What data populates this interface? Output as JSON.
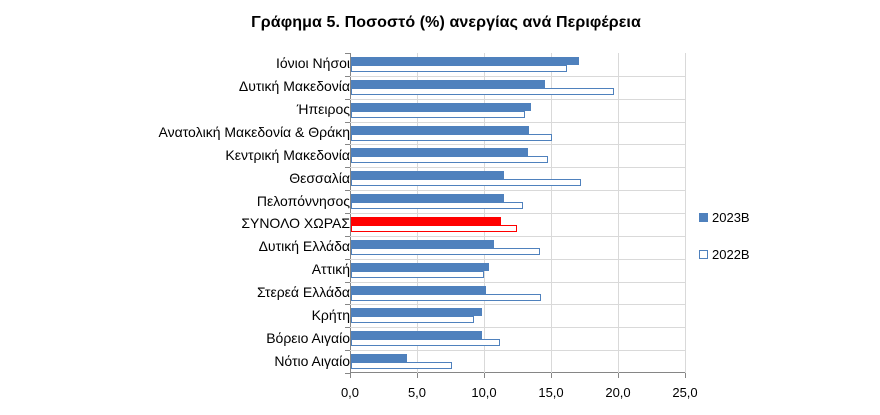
{
  "chart_data": {
    "type": "bar",
    "orientation": "horizontal",
    "title": "Γράφημα 5. Ποσοστό (%) ανεργίας ανά Περιφέρεια",
    "xlabel": "",
    "ylabel": "",
    "xlim": [
      0,
      25
    ],
    "xticks": [
      "0,0",
      "5,0",
      "10,0",
      "15,0",
      "20,0",
      "25,0"
    ],
    "grid": true,
    "legend_position": "right",
    "categories": [
      "Ιόνιοι Νήσοι",
      "Δυτική Μακεδονία",
      "Ήπειρος",
      "Ανατολική Μακεδονία & Θράκη",
      "Κεντρική Μακεδονία",
      "Θεσσαλία",
      "Πελοπόννησος",
      "ΣΥΝΟΛΟ ΧΩΡΑΣ",
      "Δυτική Ελλάδα",
      "Αττική",
      "Στερεά Ελλάδα",
      "Κρήτη",
      "Βόρειο Αιγαίο",
      "Νότιο Αιγαίο"
    ],
    "highlight_category": "ΣΥΝΟΛΟ ΧΩΡΑΣ",
    "series": [
      {
        "name": "2023Β",
        "style": "filled",
        "color": "#4f81bd",
        "values": [
          17.0,
          14.5,
          13.4,
          13.3,
          13.2,
          11.4,
          11.4,
          11.2,
          10.7,
          10.3,
          10.1,
          9.8,
          9.8,
          4.2
        ]
      },
      {
        "name": "2022Β",
        "style": "outline",
        "color": "#4f81bd",
        "values": [
          16.1,
          19.6,
          13.0,
          15.0,
          14.7,
          17.2,
          12.8,
          12.4,
          14.1,
          9.9,
          14.2,
          9.2,
          11.1,
          7.5
        ]
      }
    ],
    "highlight_color": "#ff0000"
  },
  "legend": {
    "items": [
      {
        "label": "2023Β"
      },
      {
        "label": "2022Β"
      }
    ]
  }
}
